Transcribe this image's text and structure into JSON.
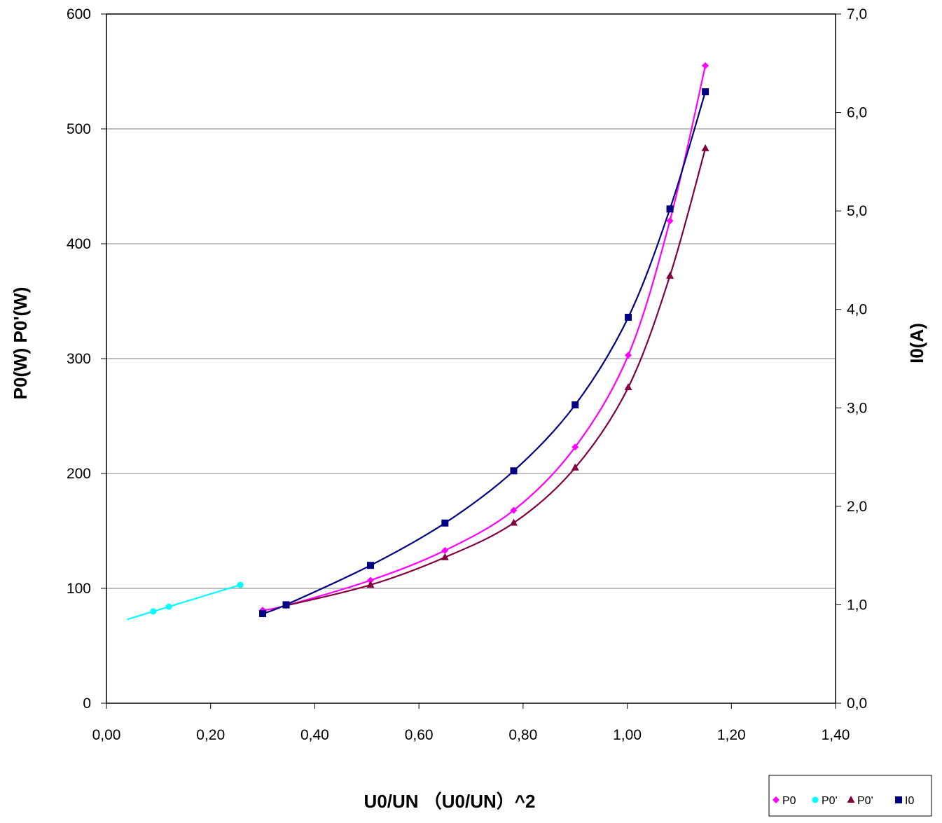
{
  "chart_data": {
    "type": "scatter",
    "title": "",
    "xlabel": "U0/UN （U0/UN）^2",
    "ylabel_left": "P0(W)  P0'(W)",
    "ylabel_right": "I0(A)",
    "xlim": [
      0,
      1.4
    ],
    "ylim_left": [
      0,
      600
    ],
    "ylim_right": [
      0,
      7
    ],
    "x_ticks": [
      "0,00",
      "0,20",
      "0,40",
      "0,60",
      "0,80",
      "1,00",
      "1,20",
      "1,40"
    ],
    "y_ticks_left": [
      "0",
      "100",
      "200",
      "300",
      "400",
      "500",
      "600"
    ],
    "y_ticks_right": [
      "0,0",
      "1,0",
      "2,0",
      "3,0",
      "4,0",
      "5,0",
      "6,0",
      "7,0"
    ],
    "grid": "horizontal",
    "legend_position": "bottom-right",
    "series": [
      {
        "name": "P0",
        "axis": "left",
        "color": "#ff00ff",
        "marker": "diamond",
        "x": [
          0.3,
          0.345,
          0.507,
          0.65,
          0.782,
          0.9,
          1.002,
          1.082,
          1.15
        ],
        "y": [
          81,
          85,
          107,
          133,
          168,
          223,
          303,
          420,
          555
        ]
      },
      {
        "name": "P0'",
        "axis": "left",
        "color": "#00ffff",
        "marker": "circle",
        "x": [
          0.09,
          0.12,
          0.257
        ],
        "y": [
          80,
          84,
          103
        ],
        "trendline_x": [
          0.04,
          0.257
        ],
        "trendline_y": [
          73,
          103
        ]
      },
      {
        "name": "P0'",
        "axis": "left",
        "color": "#800040",
        "marker": "triangle",
        "x": [
          0.345,
          0.507,
          0.65,
          0.782,
          0.9,
          1.002,
          1.082,
          1.15
        ],
        "y": [
          85,
          103,
          127,
          157,
          205,
          275,
          372,
          483
        ]
      },
      {
        "name": "I0",
        "axis": "right",
        "color": "#000080",
        "marker": "square",
        "x": [
          0.3,
          0.345,
          0.507,
          0.65,
          0.782,
          0.9,
          1.002,
          1.082,
          1.15
        ],
        "y": [
          0.91,
          1.0,
          1.4,
          1.83,
          2.36,
          3.03,
          3.92,
          5.02,
          6.21
        ]
      }
    ]
  }
}
